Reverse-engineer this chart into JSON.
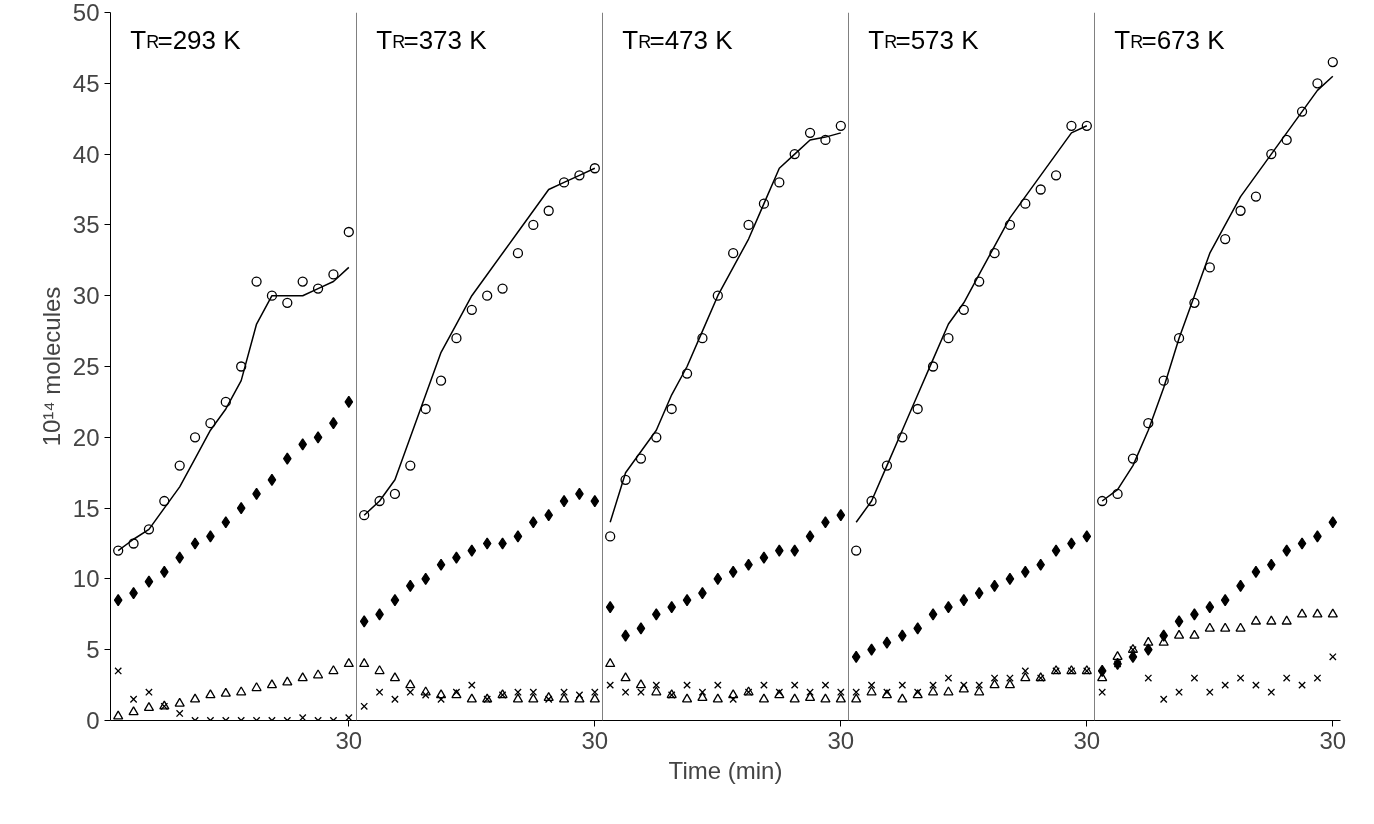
{
  "chart_data": {
    "type": "scatter",
    "xlabel": "Time (min)",
    "ylabel": "10¹⁴ molecules",
    "ylim": [
      0,
      50
    ],
    "yticks": [
      0,
      5,
      10,
      15,
      20,
      25,
      30,
      35,
      40,
      45,
      50
    ],
    "grid": false,
    "categories": [
      null,
      null,
      null,
      null,
      null,
      null,
      null,
      null,
      null,
      null,
      null,
      null,
      null,
      null,
      null,
      "30",
      null,
      null,
      null,
      null,
      null,
      null,
      null,
      null,
      null,
      null,
      null,
      null,
      null,
      null,
      null,
      "30",
      null,
      null,
      null,
      null,
      null,
      null,
      null,
      null,
      null,
      null,
      null,
      null,
      null,
      null,
      null,
      "30",
      null,
      null,
      null,
      null,
      null,
      null,
      null,
      null,
      null,
      null,
      null,
      null,
      null,
      null,
      null,
      "30",
      null,
      null,
      null,
      null,
      null,
      null,
      null,
      null,
      null,
      null,
      null,
      null,
      null,
      null,
      null,
      "30"
    ],
    "annotations": [
      "T$_{R}$=293 K",
      "T$_{R}$=373 K",
      "T$_{R}$=473 K",
      "T$_{R}$=573 K",
      "T$_{R}$=673 K"
    ],
    "series": [
      {
        "marker": "circle",
        "color": "#000000",
        "values": [
          12,
          12.5,
          13.5,
          15.5,
          18,
          20,
          21,
          22.5,
          25,
          31,
          30,
          29.5,
          31,
          30.5,
          31.5,
          34.5,
          14.5,
          15.5,
          16,
          18,
          22,
          24,
          27,
          29,
          30,
          30.5,
          33,
          35,
          36,
          38,
          38.5,
          39,
          13,
          17,
          18.5,
          20,
          22,
          24.5,
          27,
          30,
          33,
          35,
          36.5,
          38,
          40,
          41.5,
          41,
          42,
          12,
          15.5,
          18,
          20,
          22,
          25,
          27,
          29,
          31,
          33,
          35,
          36.5,
          37.5,
          38.5,
          42,
          42,
          15.5,
          16,
          18.5,
          21,
          24,
          27,
          29.5,
          32,
          34,
          36,
          37,
          40,
          41,
          43,
          45,
          46.5
        ]
      },
      {
        "marker": "diamond",
        "color": "#000000",
        "values": [
          8.5,
          9,
          9.8,
          10.5,
          11.5,
          12.5,
          13,
          14,
          15,
          16,
          17,
          18.5,
          19.5,
          20,
          21,
          22.5,
          7,
          7.5,
          8.5,
          9.5,
          10,
          11,
          11.5,
          12,
          12.5,
          12.5,
          13,
          14,
          14.5,
          15.5,
          16,
          15.5,
          8,
          6,
          6.5,
          7.5,
          8,
          8.5,
          9,
          10,
          10.5,
          11,
          11.5,
          12,
          12,
          13,
          14,
          14.5,
          4.5,
          5,
          5.5,
          6,
          6.5,
          7.5,
          8,
          8.5,
          9,
          9.5,
          10,
          10.5,
          11,
          12,
          12.5,
          13,
          3.5,
          4,
          4.5,
          5,
          6,
          7,
          7.5,
          8,
          8.5,
          9.5,
          10.5,
          11,
          12,
          12.5,
          13,
          14
        ]
      },
      {
        "marker": "triangle",
        "color": "#000000",
        "values": [
          0.3,
          0.6,
          0.9,
          1,
          1.2,
          1.5,
          1.8,
          1.9,
          2,
          2.3,
          2.5,
          2.7,
          3,
          3.2,
          3.5,
          4,
          4,
          3.5,
          3,
          2.5,
          2,
          1.8,
          1.8,
          1.5,
          1.5,
          1.8,
          1.5,
          1.5,
          1.6,
          1.5,
          1.5,
          1.5,
          4,
          3,
          2.5,
          2,
          1.8,
          1.5,
          1.6,
          1.5,
          1.8,
          2,
          1.5,
          1.8,
          1.5,
          1.6,
          1.5,
          1.5,
          1.5,
          2,
          1.8,
          1.5,
          1.8,
          2,
          2,
          2.2,
          2,
          2.5,
          2.5,
          3,
          3,
          3.5,
          3.5,
          3.5,
          3,
          4.5,
          5,
          5.5,
          5.5,
          6,
          6,
          6.5,
          6.5,
          6.5,
          7,
          7,
          7,
          7.5,
          7.5,
          7.5
        ]
      },
      {
        "marker": "cross",
        "color": "#000000",
        "values": [
          3.5,
          1.5,
          2,
          1,
          0.5,
          0,
          0,
          0,
          0,
          0,
          0,
          0,
          0.2,
          0,
          0,
          0.2,
          1,
          2,
          1.5,
          2,
          1.8,
          1.5,
          2,
          2.5,
          1.5,
          1.8,
          2,
          2,
          1.5,
          2,
          1.8,
          2,
          2.5,
          2,
          2,
          2.5,
          1.8,
          2.5,
          2,
          2.5,
          1.5,
          2,
          2.5,
          2,
          2.5,
          2,
          2.5,
          2,
          2,
          2.5,
          2,
          2.5,
          2,
          2.5,
          3,
          2.5,
          2.5,
          3,
          3,
          3.5,
          3,
          3.5,
          3.5,
          3.5,
          2,
          4,
          5,
          3,
          1.5,
          2,
          3,
          2,
          2.5,
          3,
          2.5,
          2,
          3,
          2.5,
          3,
          4.5
        ]
      },
      {
        "type": "line",
        "color": "#000000",
        "values": [
          12,
          12.8,
          13.5,
          15,
          16.5,
          18.5,
          20.5,
          22,
          24,
          28,
          30,
          30,
          30,
          30.5,
          31,
          32,
          null,
          null,
          null,
          null,
          null,
          null,
          null,
          null,
          null,
          null,
          null,
          null,
          null,
          null,
          null,
          null,
          null,
          null,
          null,
          null,
          null,
          null,
          null,
          null,
          null,
          null,
          null,
          null,
          null,
          null,
          null,
          null,
          null,
          null,
          null,
          null,
          null,
          null,
          null,
          null,
          null,
          null,
          null,
          null,
          null,
          null,
          null,
          null,
          null,
          null,
          null,
          null,
          null,
          null,
          null,
          null,
          null,
          null,
          null,
          null,
          null,
          null,
          null,
          null
        ]
      },
      {
        "type": "line",
        "color": "#000000",
        "values": [
          null,
          null,
          null,
          null,
          null,
          null,
          null,
          null,
          null,
          null,
          null,
          null,
          null,
          null,
          null,
          null,
          14.5,
          15.5,
          17,
          20,
          23,
          26,
          28,
          30,
          31.5,
          33,
          34.5,
          36,
          37.5,
          38,
          38.5,
          39,
          null,
          null,
          null,
          null,
          null,
          null,
          null,
          null,
          null,
          null,
          null,
          null,
          null,
          null,
          null,
          null,
          null,
          null,
          null,
          null,
          null,
          null,
          null,
          null,
          null,
          null,
          null,
          null,
          null,
          null,
          null,
          null,
          null,
          null,
          null,
          null,
          null,
          null,
          null,
          null,
          null,
          null,
          null,
          null,
          null,
          null,
          null,
          null
        ]
      },
      {
        "type": "line",
        "color": "#000000",
        "values": [
          null,
          null,
          null,
          null,
          null,
          null,
          null,
          null,
          null,
          null,
          null,
          null,
          null,
          null,
          null,
          null,
          null,
          null,
          null,
          null,
          null,
          null,
          null,
          null,
          null,
          null,
          null,
          null,
          null,
          null,
          null,
          null,
          14,
          17.5,
          19,
          20.5,
          23,
          25,
          27.5,
          30,
          32,
          34,
          36.5,
          39,
          40,
          41,
          41.2,
          41.5,
          null,
          null,
          null,
          null,
          null,
          null,
          null,
          null,
          null,
          null,
          null,
          null,
          null,
          null,
          null,
          null,
          null,
          null,
          null,
          null,
          null,
          null,
          null,
          null,
          null,
          null,
          null,
          null,
          null,
          null,
          null,
          null
        ]
      },
      {
        "type": "line",
        "color": "#000000",
        "values": [
          null,
          null,
          null,
          null,
          null,
          null,
          null,
          null,
          null,
          null,
          null,
          null,
          null,
          null,
          null,
          null,
          null,
          null,
          null,
          null,
          null,
          null,
          null,
          null,
          null,
          null,
          null,
          null,
          null,
          null,
          null,
          null,
          null,
          null,
          null,
          null,
          null,
          null,
          null,
          null,
          null,
          null,
          null,
          null,
          null,
          null,
          null,
          null,
          14,
          15.5,
          18,
          20.5,
          23,
          25.5,
          28,
          29.5,
          31.5,
          33.5,
          35.5,
          37,
          38.5,
          40,
          41.5,
          42,
          null,
          null,
          null,
          null,
          null,
          null,
          null,
          null,
          null,
          null,
          null,
          null,
          null,
          null,
          null,
          null
        ]
      },
      {
        "type": "line",
        "color": "#000000",
        "values": [
          null,
          null,
          null,
          null,
          null,
          null,
          null,
          null,
          null,
          null,
          null,
          null,
          null,
          null,
          null,
          null,
          null,
          null,
          null,
          null,
          null,
          null,
          null,
          null,
          null,
          null,
          null,
          null,
          null,
          null,
          null,
          null,
          null,
          null,
          null,
          null,
          null,
          null,
          null,
          null,
          null,
          null,
          null,
          null,
          null,
          null,
          null,
          null,
          null,
          null,
          null,
          null,
          null,
          null,
          null,
          null,
          null,
          null,
          null,
          null,
          null,
          null,
          null,
          null,
          15.5,
          16.3,
          18,
          20.5,
          23.5,
          27,
          30,
          33,
          35,
          37,
          38.5,
          40,
          41.5,
          43,
          44.5,
          45.5
        ]
      }
    ]
  }
}
